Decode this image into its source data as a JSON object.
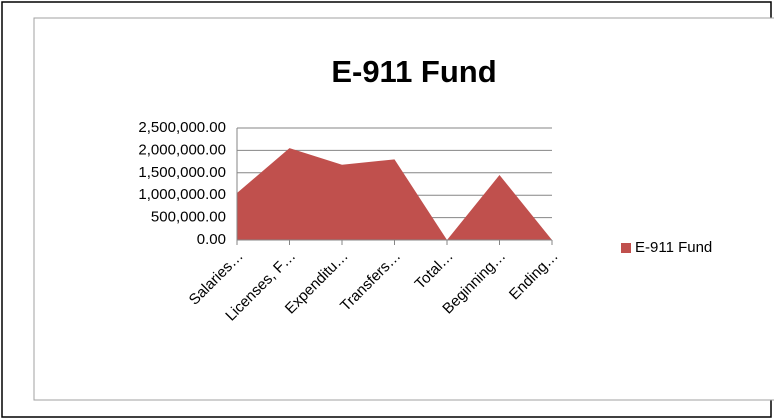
{
  "chart_data": {
    "type": "area",
    "title": "E-911 Fund",
    "categories": [
      "Salaries…",
      "Licenses, F…",
      "Expenditu…",
      "Transfers…",
      "Total…",
      "Beginning…",
      "Ending…"
    ],
    "series": [
      {
        "name": "E-911 Fund",
        "color": "#c0504d",
        "values": [
          1050000,
          2050000,
          1680000,
          1800000,
          0,
          1450000,
          0
        ]
      }
    ],
    "ylim": [
      0,
      2500000
    ],
    "yticks": [
      {
        "value": 0,
        "label": "0.00"
      },
      {
        "value": 500000,
        "label": "500,000.00"
      },
      {
        "value": 1000000,
        "label": "1,000,000.00"
      },
      {
        "value": 1500000,
        "label": "1,500,000.00"
      },
      {
        "value": 2000000,
        "label": "2,000,000.00"
      },
      {
        "value": 2500000,
        "label": "2,500,000.00"
      }
    ],
    "grid": true,
    "legend": "right"
  }
}
